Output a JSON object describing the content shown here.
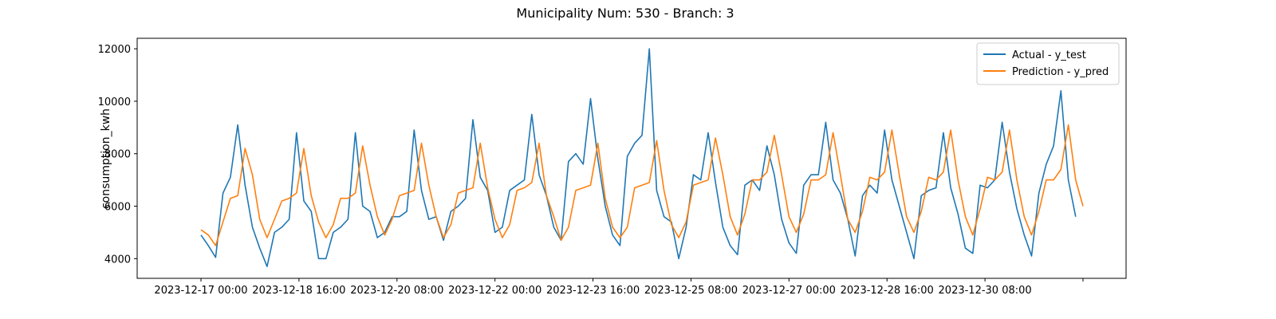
{
  "chart_data": {
    "type": "line",
    "title": "Municipality Num: 530 - Branch: 3",
    "xlabel": "",
    "ylabel": "consumption_kwh",
    "x_start": "2023-12-17 00:00",
    "x_step_hours": 4,
    "x_ticks": [
      "2023-12-17 00:00",
      "2023-12-18 16:00",
      "2023-12-20 08:00",
      "2023-12-22 00:00",
      "2023-12-23 16:00",
      "2023-12-25 08:00",
      "2023-12-27 00:00",
      "2023-12-28 16:00",
      "2023-12-30 08:00",
      ""
    ],
    "y_ticks": [
      4000,
      6000,
      8000,
      10000,
      12000
    ],
    "ylim": [
      3250,
      12400
    ],
    "grid": false,
    "legend_position": "top-right",
    "series": [
      {
        "name": "Actual - y_test",
        "color": "#1f77b4",
        "values": [
          4900,
          4500,
          4050,
          6500,
          7100,
          9100,
          6800,
          5200,
          4400,
          3700,
          5000,
          5200,
          5500,
          8800,
          6200,
          5800,
          4000,
          4000,
          5000,
          5200,
          5500,
          8800,
          6000,
          5800,
          4800,
          5000,
          5600,
          5600,
          5800,
          8900,
          6600,
          5500,
          5600,
          4700,
          5800,
          6000,
          6300,
          9300,
          7100,
          6600,
          5000,
          5200,
          6600,
          6800,
          7000,
          9500,
          7200,
          6400,
          5200,
          4700,
          7700,
          8000,
          7600,
          10100,
          7800,
          6000,
          4900,
          4500,
          7900,
          8400,
          8700,
          12000,
          6600,
          5600,
          5400,
          4000,
          5200,
          7200,
          7000,
          8800,
          6900,
          5200,
          4500,
          4150,
          6800,
          7000,
          6600,
          8300,
          7200,
          5500,
          4600,
          4200,
          6800,
          7200,
          7200,
          9200,
          7000,
          6500,
          5500,
          4100,
          6400,
          6800,
          6500,
          8900,
          7000,
          6000,
          5000,
          4000,
          6400,
          6600,
          6700,
          8800,
          6700,
          5700,
          4400,
          4200,
          6800,
          6700,
          7000,
          9200,
          7300,
          5900,
          4900,
          4100,
          6500,
          7600,
          8300,
          10400,
          7000,
          5600
        ]
      },
      {
        "name": "Prediction - y_pred",
        "color": "#ff7f0e",
        "values": [
          5100,
          4900,
          4500,
          5400,
          6300,
          6400,
          8200,
          7200,
          5500,
          4800,
          5500,
          6200,
          6300,
          6500,
          8200,
          6400,
          5400,
          4800,
          5300,
          6300,
          6300,
          6500,
          8300,
          6800,
          5600,
          4900,
          5500,
          6400,
          6500,
          6600,
          8400,
          6800,
          5600,
          4800,
          5300,
          6500,
          6600,
          6700,
          8400,
          6700,
          5500,
          4800,
          5300,
          6600,
          6700,
          6900,
          8400,
          6400,
          5600,
          4700,
          5200,
          6600,
          6700,
          6800,
          8400,
          6300,
          5200,
          4800,
          5200,
          6700,
          6800,
          6900,
          8500,
          6600,
          5300,
          4800,
          5400,
          6800,
          6900,
          7000,
          8600,
          7200,
          5600,
          4900,
          5700,
          7000,
          7000,
          7300,
          8700,
          7200,
          5600,
          5000,
          5700,
          7000,
          7000,
          7200,
          8800,
          7200,
          5500,
          5000,
          5800,
          7100,
          7000,
          7300,
          8900,
          7200,
          5600,
          5000,
          5800,
          7100,
          7000,
          7300,
          8900,
          7000,
          5600,
          4900,
          5900,
          7100,
          7000,
          7300,
          8900,
          7000,
          5600,
          4900,
          5800,
          7000,
          7000,
          7400,
          9100,
          7000,
          6000
        ]
      }
    ]
  }
}
